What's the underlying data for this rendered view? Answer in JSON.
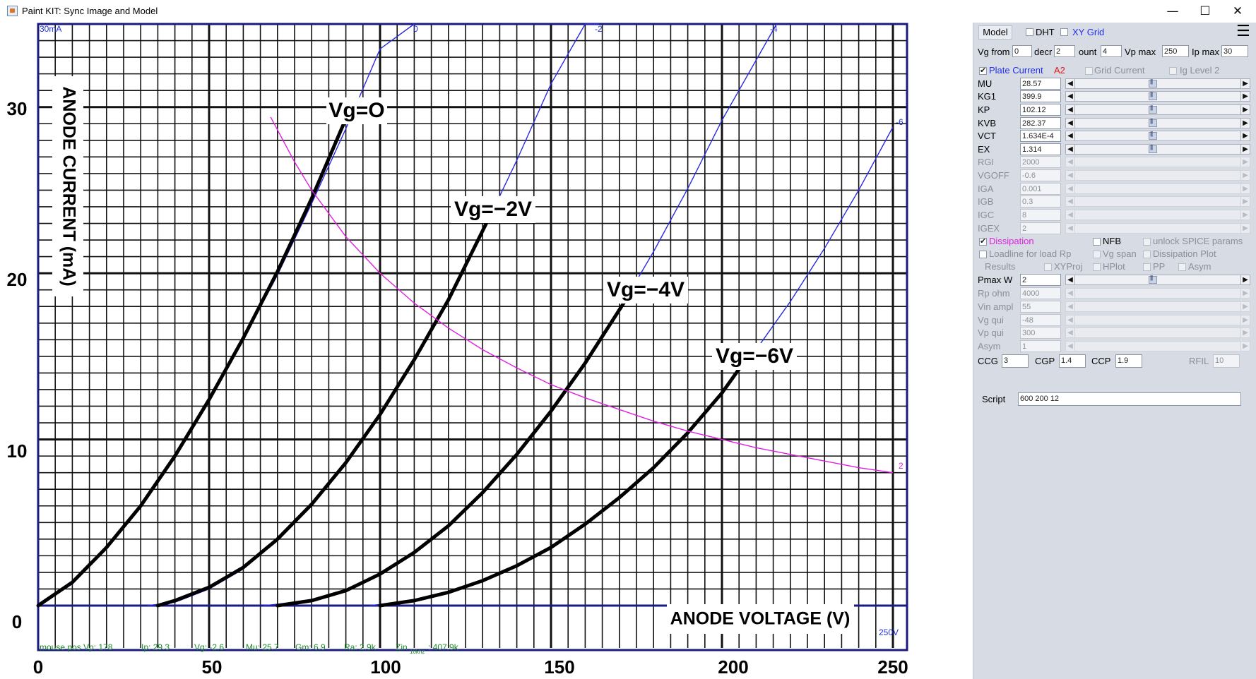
{
  "window": {
    "title": "Paint KIT: Sync Image and Model",
    "minimize_glyph": "—",
    "maximize_glyph": "☐",
    "close_glyph": "✕"
  },
  "chart_data": {
    "type": "line",
    "xlabel": "ANODE VOLTAGE (V)",
    "ylabel": "ANODE CURRENT (mA)",
    "xlim": [
      0,
      250
    ],
    "ylim": [
      0,
      35
    ],
    "x_ticks": [
      "0",
      "50",
      "100",
      "150",
      "200",
      "250"
    ],
    "y_ticks": [
      "0",
      "10",
      "20",
      "30"
    ],
    "curve_labels": [
      "Vg=O",
      "Vg=−2V",
      "Vg=−4V",
      "Vg=−6V"
    ],
    "model_labels": [
      "30mA",
      "0",
      "-2",
      "-4",
      "-6",
      "2",
      "250V"
    ],
    "series": [
      {
        "name": "Vg=O",
        "x": [
          0,
          10,
          20,
          30,
          40,
          50,
          60,
          70,
          80,
          90
        ],
        "y": [
          0,
          1.4,
          3.5,
          6.0,
          9.0,
          12.4,
          16.1,
          20.1,
          24.5,
          29.3
        ]
      },
      {
        "name": "Vg=−2V",
        "x": [
          35,
          40,
          50,
          60,
          70,
          80,
          90,
          100,
          110,
          120,
          133
        ],
        "y": [
          0,
          0.3,
          1.1,
          2.3,
          4.0,
          6.1,
          8.6,
          11.5,
          14.8,
          18.4,
          23.8
        ]
      },
      {
        "name": "Vg=−4V",
        "x": [
          70,
          80,
          90,
          100,
          110,
          120,
          130,
          140,
          150,
          160,
          175
        ],
        "y": [
          0,
          0.3,
          0.9,
          1.9,
          3.2,
          4.8,
          6.8,
          9.1,
          11.7,
          14.6,
          19.4
        ]
      },
      {
        "name": "Vg=−6V",
        "x": [
          100,
          110,
          120,
          130,
          140,
          150,
          160,
          170,
          180,
          190,
          200,
          208
        ],
        "y": [
          0,
          0.3,
          0.8,
          1.5,
          2.4,
          3.5,
          4.9,
          6.5,
          8.3,
          10.4,
          12.8,
          15.1
        ]
      }
    ],
    "model_series": [
      {
        "x": [
          0,
          10,
          20,
          30,
          40,
          50,
          60,
          70,
          80,
          90,
          100,
          110
        ],
        "y": [
          0,
          1.3,
          3.4,
          6.0,
          9.0,
          12.3,
          16.0,
          19.9,
          24.2,
          28.7,
          33.5,
          38.5
        ]
      },
      {
        "x": [
          32,
          40,
          50,
          60,
          70,
          80,
          90,
          100,
          110,
          120,
          130,
          140,
          150,
          160,
          164
        ],
        "y": [
          0,
          0.2,
          1.0,
          2.2,
          3.9,
          6.0,
          8.6,
          11.5,
          14.8,
          18.5,
          22.5,
          26.8,
          31.4,
          36.3,
          38.3
        ]
      },
      {
        "x": [
          66,
          80,
          90,
          100,
          110,
          120,
          130,
          140,
          150,
          160,
          170,
          180,
          190,
          200,
          216
        ],
        "y": [
          0,
          0.3,
          0.9,
          1.9,
          3.2,
          4.8,
          6.8,
          9.1,
          11.7,
          14.6,
          17.8,
          21.3,
          25.1,
          29.2,
          36.3
        ]
      },
      {
        "x": [
          97,
          110,
          120,
          130,
          140,
          150,
          160,
          170,
          180,
          190,
          200,
          210,
          220,
          230,
          240,
          250
        ],
        "y": [
          0,
          0.3,
          0.8,
          1.5,
          2.4,
          3.5,
          4.9,
          6.5,
          8.3,
          10.4,
          12.8,
          15.4,
          18.3,
          21.5,
          25.0,
          28.8
        ]
      }
    ],
    "dissipation": {
      "pmax_w": 2,
      "x": [
        68,
        75,
        80,
        90,
        100,
        110,
        120,
        130,
        140,
        150,
        160,
        170,
        180,
        190,
        200,
        210,
        220,
        230,
        240,
        250
      ],
      "y": [
        29.4,
        26.7,
        25.0,
        22.2,
        20.0,
        18.2,
        16.7,
        15.4,
        14.3,
        13.3,
        12.5,
        11.8,
        11.1,
        10.5,
        10.0,
        9.5,
        9.1,
        8.7,
        8.3,
        8.0
      ]
    },
    "grid": true
  },
  "status": {
    "mouse_pos": "mouse pos Vp: 178",
    "ip": "Ip: 29.3",
    "vg": "Vg: -2.6",
    "mu": "Mu: 25.7",
    "gm": "Gm: 6.9",
    "ra": "Ra: 2.9k",
    "zin": "Zin",
    "zin_sub": "10khz",
    "zin_val": ": 407.9k"
  },
  "panel": {
    "model_button": "Model",
    "dht_label": "DHT",
    "xy_grid_label": "XY Grid",
    "menu_glyph": "☰",
    "vg_from_label": "Vg from",
    "vg_from_value": "0",
    "decr_label": "decr",
    "decr_value": "2",
    "count_label": "ount",
    "count_value": "4",
    "vp_max_label": "Vp max",
    "vp_max_value": "250",
    "ip_max_label": "Ip max",
    "ip_max_value": "30",
    "plate_current_label": "Plate Current",
    "a2_label": "A2",
    "grid_current_label": "Grid Current",
    "ig_level_label": "Ig Level 2",
    "params": [
      {
        "label": "MU",
        "value": "28.57"
      },
      {
        "label": "KG1",
        "value": "399.9"
      },
      {
        "label": "KP",
        "value": "102.12"
      },
      {
        "label": "KVB",
        "value": "282.37"
      },
      {
        "label": "VCT",
        "value": "1.634E-4"
      },
      {
        "label": "EX",
        "value": "1.314"
      }
    ],
    "grid_params": [
      {
        "label": "RGI",
        "value": "2000"
      },
      {
        "label": "VGOFF",
        "value": "-0.6"
      },
      {
        "label": "IGA",
        "value": "0.001"
      },
      {
        "label": "IGB",
        "value": "0.3"
      },
      {
        "label": "IGC",
        "value": "8"
      },
      {
        "label": "IGEX",
        "value": "2"
      }
    ],
    "dissipation_label": "Dissipation",
    "nfb_label": "NFB",
    "unlock_spice_label": "unlock SPICE params",
    "loadline_label": "Loadline for load Rp",
    "vg_span_label": "Vg span",
    "dissipation_plot_label": "Dissipation Plot",
    "results_label": "Results",
    "xyproj_label": "XYProj",
    "hplot_label": "HPlot",
    "pp_label": "PP",
    "asym_check_label": "Asym",
    "pmax_label": "Pmax W",
    "pmax_value": "2",
    "load_params": [
      {
        "label": "Rp ohm",
        "value": "4000"
      },
      {
        "label": "Vin ampl",
        "value": "55"
      },
      {
        "label": "Vg qui",
        "value": "-48"
      },
      {
        "label": "Vp qui",
        "value": "300"
      },
      {
        "label": "Asym",
        "value": "1"
      }
    ],
    "ccg_label": "CCG",
    "ccg_value": "3",
    "cgp_label": "CGP",
    "cgp_value": "1.4",
    "ccp_label": "CCP",
    "ccp_value": "1.9",
    "rfil_label": "RFIL",
    "rfil_value": "10",
    "script_label": "Script",
    "script_value": "600 200 12"
  }
}
